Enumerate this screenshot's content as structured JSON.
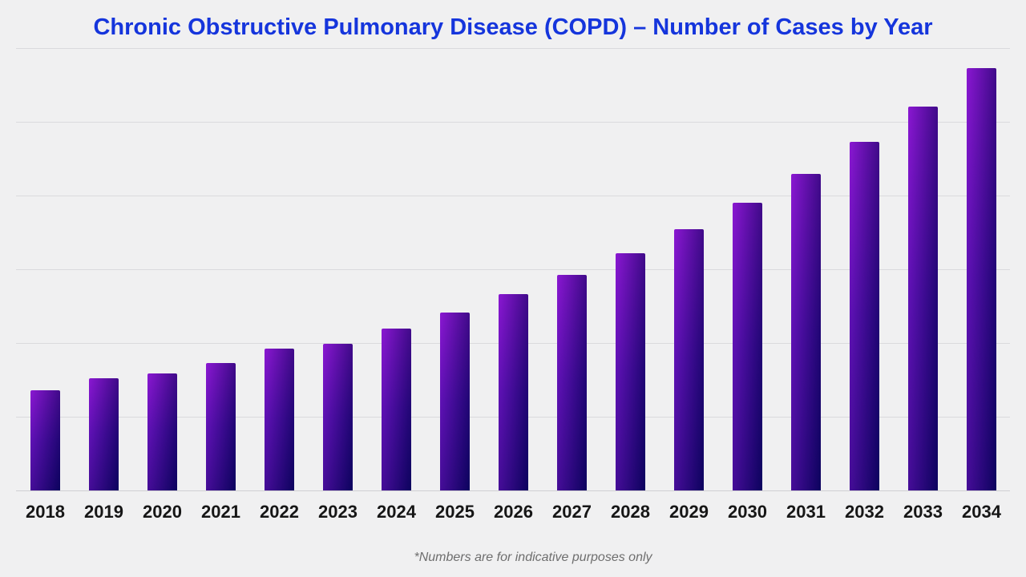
{
  "chart_data": {
    "type": "bar",
    "title": "Chronic Obstructive Pulmonary Disease (COPD) – Number of Cases by Year",
    "footnote": "*Numbers are for indicative purposes only",
    "categories": [
      "2018",
      "2019",
      "2020",
      "2021",
      "2022",
      "2023",
      "2024",
      "2025",
      "2026",
      "2027",
      "2028",
      "2029",
      "2030",
      "2031",
      "2032",
      "2033",
      "2034"
    ],
    "values": [
      136,
      152,
      159,
      173,
      192,
      199,
      220,
      241,
      266,
      292,
      322,
      354,
      390,
      429,
      473,
      521,
      573
    ],
    "xlabel": "",
    "ylabel": "",
    "ylim": [
      0,
      600
    ],
    "gridline_step": 100,
    "grid": true,
    "y_tick_labels_visible": false,
    "legend": "none",
    "units_note": "y-axis has no visible labels; values estimated in arbitrary units where one gridline interval = 100"
  },
  "colors": {
    "background": "#f0f0f1",
    "title": "#1535dc",
    "label": "#161616",
    "footnote": "#6e6e6e",
    "gridline": "#dadadd",
    "axis": "#cfcfd3",
    "bar_top": "#8414cf",
    "bar_mid": "#3c0a9f",
    "bar_bottom": "#11036e"
  }
}
